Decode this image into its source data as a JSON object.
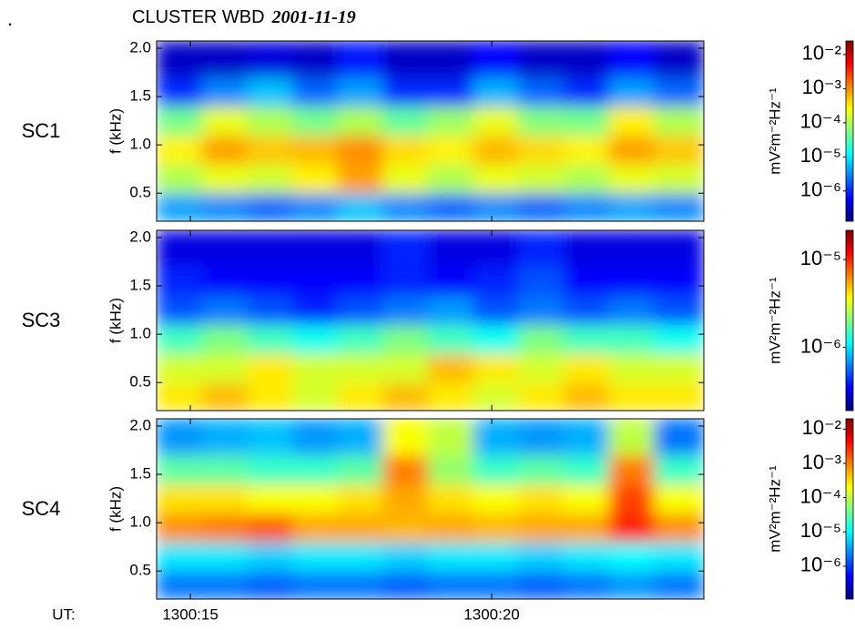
{
  "figure": {
    "mark": ".",
    "title": "CLUSTER WBD",
    "date": "2001-11-19"
  },
  "chart_data": [
    {
      "type": "spectrogram",
      "label": "SC1",
      "ylabel": "f (kHz)",
      "xlim": [
        14.44,
        23.52
      ],
      "ylim": [
        0.21,
        2.075
      ],
      "yticks": [
        0.5,
        {
          "value": 1.0,
          "label": "1.0"
        },
        1.5,
        {
          "value": 2.0,
          "label": "2.0"
        }
      ],
      "time_bins": [
        14.44,
        15.2,
        15.95,
        16.7,
        17.45,
        18.2,
        18.95,
        19.7,
        20.45,
        21.2,
        21.95,
        22.7,
        23.52
      ],
      "freq_bins": [
        0.21,
        0.5,
        0.8,
        1.1,
        1.4,
        1.7,
        2.075
      ],
      "z": [
        [
          4e-06,
          3e-06,
          2e-06,
          3e-06,
          6e-06,
          3e-06,
          2e-06,
          3e-06,
          2e-06,
          3e-06,
          4e-06,
          3e-06
        ],
        [
          0.0001,
          0.0002,
          0.00015,
          0.0003,
          0.0008,
          0.0002,
          0.0001,
          0.0002,
          0.00015,
          0.0001,
          0.0002,
          0.00015
        ],
        [
          0.0003,
          0.0008,
          0.0005,
          0.0006,
          0.001,
          0.0004,
          0.0003,
          0.0006,
          0.0004,
          0.0003,
          0.0008,
          0.0005
        ],
        [
          5e-05,
          0.0002,
          0.0001,
          5e-05,
          0.0001,
          4e-05,
          8e-05,
          0.0002,
          6e-05,
          5e-05,
          0.0003,
          0.0001
        ],
        [
          1e-06,
          3e-06,
          6e-06,
          2e-06,
          4e-06,
          1e-06,
          1e-06,
          5e-06,
          2e-06,
          1e-06,
          4e-06,
          2e-06
        ],
        [
          3e-07,
          3e-07,
          4e-07,
          3e-07,
          8e-07,
          3e-07,
          3e-07,
          6e-07,
          3e-07,
          3e-07,
          6e-07,
          3e-07
        ]
      ],
      "colorbar": {
        "label": "mV²m⁻²Hz⁻¹",
        "log_scale": true,
        "lim": [
          1.3e-07,
          0.025
        ],
        "ticks": [
          {
            "value": 1e-06,
            "label": "10⁻⁶"
          },
          {
            "value": 1e-05,
            "label": "10⁻⁵"
          },
          {
            "value": 0.0001,
            "label": "10⁻⁴"
          },
          {
            "value": 0.001,
            "label": "10⁻³"
          },
          {
            "value": 0.01,
            "label": "10⁻²"
          }
        ]
      }
    },
    {
      "type": "spectrogram",
      "label": "SC3",
      "ylabel": "f (kHz)",
      "xlim": [
        14.44,
        23.52
      ],
      "ylim": [
        0.21,
        2.075
      ],
      "yticks": [
        0.5,
        {
          "value": 1.0,
          "label": "1.0"
        },
        1.5,
        {
          "value": 2.0,
          "label": "2.0"
        }
      ],
      "time_bins": [
        14.44,
        15.2,
        15.95,
        16.7,
        17.45,
        18.2,
        18.95,
        19.7,
        20.45,
        21.2,
        21.95,
        22.7,
        23.52
      ],
      "freq_bins": [
        0.21,
        0.5,
        0.8,
        1.1,
        1.4,
        1.7,
        2.075
      ],
      "z": [
        [
          4e-06,
          5e-06,
          4e-06,
          3e-06,
          4e-06,
          5e-06,
          4e-06,
          3e-06,
          4e-06,
          5e-06,
          4e-06,
          4e-06
        ],
        [
          3e-06,
          3e-06,
          4e-06,
          3e-06,
          3e-06,
          3e-06,
          5e-06,
          4e-06,
          3e-06,
          4e-06,
          3e-06,
          3e-06
        ],
        [
          1.5e-06,
          2e-06,
          1.5e-06,
          1.2e-06,
          1.5e-06,
          2e-06,
          1.5e-06,
          1.2e-06,
          2e-06,
          1.5e-06,
          1.5e-06,
          1.2e-06
        ],
        [
          5e-07,
          6e-07,
          5e-07,
          4e-07,
          5e-07,
          6e-07,
          7e-07,
          5e-07,
          6e-07,
          5e-07,
          6e-07,
          5e-07
        ],
        [
          4e-07,
          3.5e-07,
          3.5e-07,
          3.5e-07,
          3.5e-07,
          4e-07,
          3.5e-07,
          4e-07,
          5e-07,
          3.5e-07,
          3.5e-07,
          3.5e-07
        ],
        [
          3e-07,
          3e-07,
          3e-07,
          3e-07,
          3e-07,
          4e-07,
          3e-07,
          3e-07,
          4e-07,
          3e-07,
          3e-07,
          3e-07
        ]
      ],
      "colorbar": {
        "label": "mV²m⁻²Hz⁻¹",
        "log_scale": true,
        "lim": [
          1.9e-07,
          2.15e-05
        ],
        "ticks": [
          {
            "value": 1e-06,
            "label": "10⁻⁶"
          },
          {
            "value": 1e-05,
            "label": "10⁻⁵"
          }
        ]
      }
    },
    {
      "type": "spectrogram",
      "label": "SC4",
      "ylabel": "f (kHz)",
      "xlabel": "UT:",
      "xlim": [
        14.44,
        23.52
      ],
      "ylim": [
        0.21,
        2.075
      ],
      "xticks": [
        {
          "value": 15,
          "label": "1300:15"
        },
        {
          "value": 20,
          "label": "1300:20"
        }
      ],
      "yticks": [
        0.5,
        {
          "value": 1.0,
          "label": "1.0"
        },
        1.5,
        {
          "value": 2.0,
          "label": "2.0"
        }
      ],
      "time_bins": [
        14.44,
        15.2,
        15.95,
        16.7,
        17.45,
        18.2,
        18.95,
        19.7,
        20.45,
        21.2,
        21.95,
        22.7,
        23.52
      ],
      "freq_bins": [
        0.21,
        0.5,
        0.8,
        1.1,
        1.4,
        1.7,
        2.075
      ],
      "z": [
        [
          2e-06,
          2e-06,
          1.5e-06,
          2e-06,
          2e-06,
          1.5e-06,
          2e-06,
          2e-06,
          1.5e-06,
          2e-06,
          3e-06,
          2e-06
        ],
        [
          8e-06,
          8e-06,
          6e-06,
          8e-06,
          8e-06,
          6e-06,
          8e-06,
          8e-06,
          6e-06,
          8e-06,
          1e-05,
          8e-06
        ],
        [
          0.0008,
          0.001,
          0.0015,
          0.0006,
          0.0006,
          0.0005,
          0.0006,
          0.0005,
          0.0006,
          0.0006,
          0.003,
          0.0008
        ],
        [
          0.0003,
          0.0003,
          0.0002,
          0.0002,
          0.0003,
          0.0006,
          0.0003,
          0.0002,
          0.0003,
          0.0002,
          0.002,
          0.0002
        ],
        [
          3e-05,
          3e-05,
          2e-05,
          2e-05,
          3e-05,
          0.001,
          6e-05,
          2e-05,
          3e-05,
          2e-05,
          0.001,
          2e-05
        ],
        [
          3e-06,
          4e-06,
          5e-06,
          3e-06,
          4e-06,
          0.0002,
          0.0001,
          4e-06,
          3e-06,
          4e-06,
          0.0001,
          2e-06
        ]
      ],
      "colorbar": {
        "label": "mV²m⁻²Hz⁻¹",
        "log_scale": true,
        "lim": [
          1.1e-07,
          0.02
        ],
        "ticks": [
          {
            "value": 1e-06,
            "label": "10⁻⁶"
          },
          {
            "value": 1e-05,
            "label": "10⁻⁵"
          },
          {
            "value": 0.0001,
            "label": "10⁻⁴"
          },
          {
            "value": 0.001,
            "label": "10⁻³"
          },
          {
            "value": 0.01,
            "label": "10⁻²"
          }
        ]
      }
    }
  ]
}
